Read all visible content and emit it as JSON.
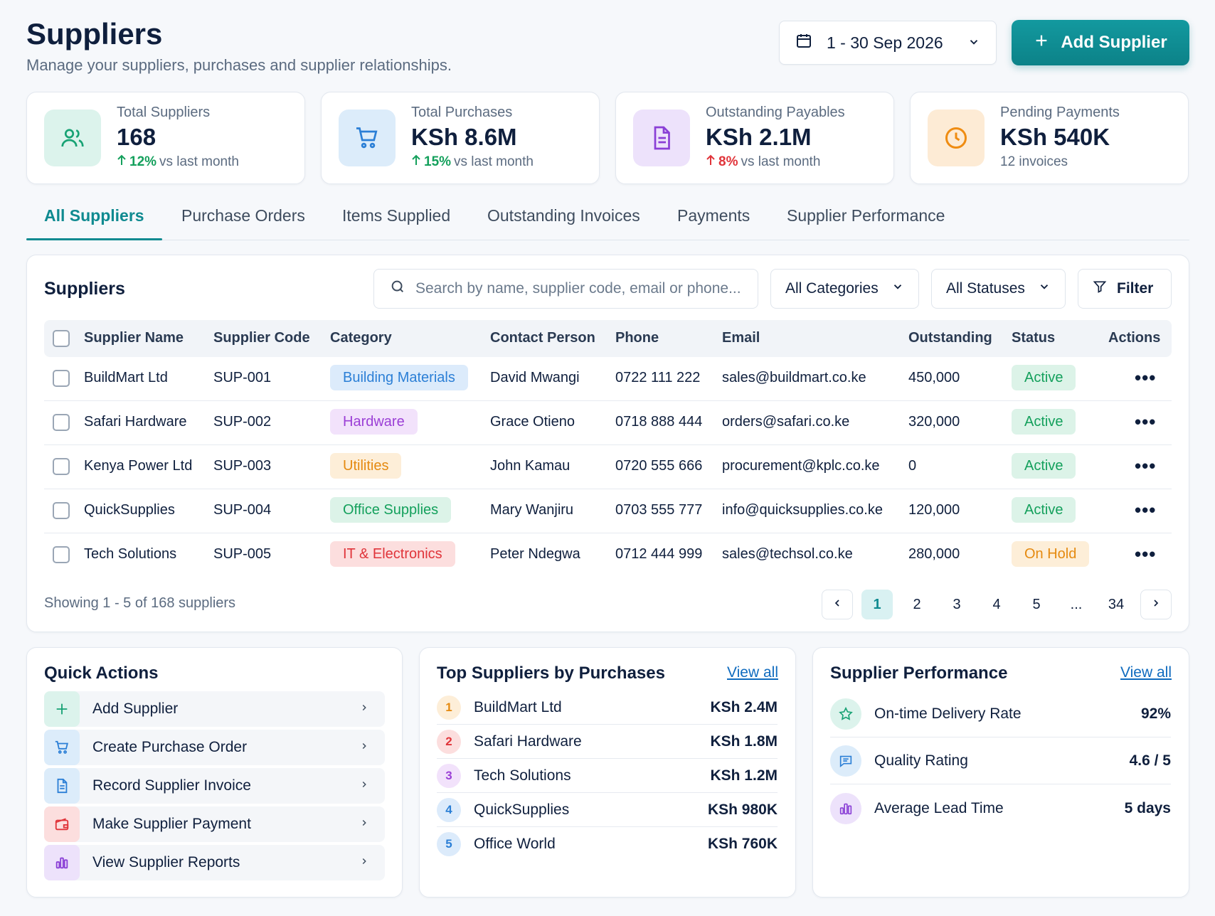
{
  "header": {
    "title": "Suppliers",
    "subtitle": "Manage your suppliers, purchases and supplier relationships.",
    "date_range": "1 - 30 Sep 2026",
    "add_button": "Add Supplier"
  },
  "kpis": [
    {
      "label": "Total Suppliers",
      "value": "168",
      "delta": "12%",
      "delta_text": "vs last month",
      "direction": "up",
      "icon": "users-icon"
    },
    {
      "label": "Total Purchases",
      "value": "KSh 8.6M",
      "delta": "15%",
      "delta_text": "vs last month",
      "direction": "up",
      "icon": "cart-icon"
    },
    {
      "label": "Outstanding Payables",
      "value": "KSh 2.1M",
      "delta": "8%",
      "delta_text": "vs last month",
      "direction": "down",
      "icon": "document-icon"
    },
    {
      "label": "Pending Payments",
      "value": "KSh 540K",
      "note": "12 invoices",
      "icon": "clock-icon"
    }
  ],
  "tabs": [
    "All Suppliers",
    "Purchase Orders",
    "Items Supplied",
    "Outstanding Invoices",
    "Payments",
    "Supplier Performance"
  ],
  "suppliers_panel": {
    "title": "Suppliers",
    "search_placeholder": "Search by name, supplier code, email or phone...",
    "category_filter": "All Categories",
    "status_filter": "All Statuses",
    "filter_button": "Filter",
    "columns": [
      "Supplier Name",
      "Supplier Code",
      "Category",
      "Contact Person",
      "Phone",
      "Email",
      "Outstanding",
      "Status",
      "Actions"
    ],
    "rows": [
      {
        "name": "BuildMart Ltd",
        "code": "SUP-001",
        "category": "Building Materials",
        "contact": "David Mwangi",
        "phone": "0722 111 222",
        "email": "sales@buildmart.co.ke",
        "outstanding": "450,000",
        "status": "Active"
      },
      {
        "name": "Safari Hardware",
        "code": "SUP-002",
        "category": "Hardware",
        "contact": "Grace Otieno",
        "phone": "0718 888 444",
        "email": "orders@safari.co.ke",
        "outstanding": "320,000",
        "status": "Active"
      },
      {
        "name": "Kenya Power Ltd",
        "code": "SUP-003",
        "category": "Utilities",
        "contact": "John Kamau",
        "phone": "0720 555 666",
        "email": "procurement@kplc.co.ke",
        "outstanding": "0",
        "status": "Active"
      },
      {
        "name": "QuickSupplies",
        "code": "SUP-004",
        "category": "Office Supplies",
        "contact": "Mary Wanjiru",
        "phone": "0703 555 777",
        "email": "info@quicksupplies.co.ke",
        "outstanding": "120,000",
        "status": "Active"
      },
      {
        "name": "Tech Solutions",
        "code": "SUP-005",
        "category": "IT & Electronics",
        "contact": "Peter Ndegwa",
        "phone": "0712 444 999",
        "email": "sales@techsol.co.ke",
        "outstanding": "280,000",
        "status": "On Hold"
      }
    ],
    "showing": "Showing 1 - 5 of 168 suppliers",
    "pages": [
      "1",
      "2",
      "3",
      "4",
      "5",
      "...",
      "34"
    ],
    "current_page": "1"
  },
  "quick_actions": {
    "title": "Quick Actions",
    "items": [
      {
        "label": "Add Supplier",
        "icon": "plus-icon"
      },
      {
        "label": "Create Purchase Order",
        "icon": "cart-icon"
      },
      {
        "label": "Record Supplier Invoice",
        "icon": "document-icon"
      },
      {
        "label": "Make Supplier Payment",
        "icon": "wallet-icon"
      },
      {
        "label": "View Supplier Reports",
        "icon": "bar-chart-icon"
      }
    ]
  },
  "top_suppliers": {
    "title": "Top Suppliers by Purchases",
    "view_all": "View all",
    "items": [
      {
        "rank": "1",
        "name": "BuildMart Ltd",
        "amount": "KSh 2.4M"
      },
      {
        "rank": "2",
        "name": "Safari Hardware",
        "amount": "KSh 1.8M"
      },
      {
        "rank": "3",
        "name": "Tech Solutions",
        "amount": "KSh 1.2M"
      },
      {
        "rank": "4",
        "name": "QuickSupplies",
        "amount": "KSh 980K"
      },
      {
        "rank": "5",
        "name": "Office World",
        "amount": "KSh 760K"
      }
    ]
  },
  "performance": {
    "title": "Supplier Performance",
    "view_all": "View all",
    "items": [
      {
        "label": "On-time Delivery Rate",
        "value": "92%",
        "icon": "star-icon"
      },
      {
        "label": "Quality Rating",
        "value": "4.6 / 5",
        "icon": "chat-icon"
      },
      {
        "label": "Average Lead Time",
        "value": "5 days",
        "icon": "bar-chart-icon"
      }
    ]
  },
  "colors": {
    "accent": "#0f8a90",
    "positive": "#14a05c",
    "negative": "#e0343a"
  }
}
